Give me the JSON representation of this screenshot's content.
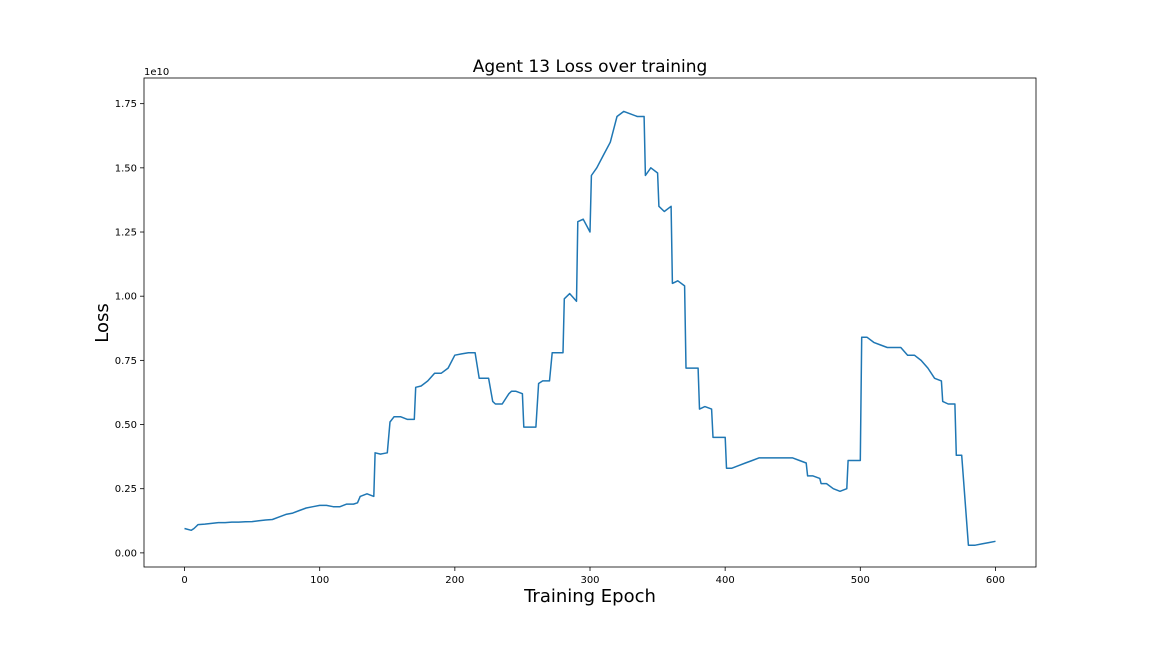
{
  "chart_data": {
    "type": "line",
    "title": "Agent 13 Loss over training",
    "xlabel": "Training Epoch",
    "ylabel": "Loss",
    "y_offset_text": "1e10",
    "xlim": [
      -30,
      630
    ],
    "ylim": [
      -0.055,
      1.85
    ],
    "y_scale_multiplier": 10000000000,
    "x_ticks": [
      0,
      100,
      200,
      300,
      400,
      500,
      600
    ],
    "x_tick_labels": [
      "0",
      "100",
      "200",
      "300",
      "400",
      "500",
      "600"
    ],
    "y_ticks": [
      0.0,
      0.25,
      0.5,
      0.75,
      1.0,
      1.25,
      1.5,
      1.75
    ],
    "y_tick_labels": [
      "0.00",
      "0.25",
      "0.50",
      "0.75",
      "1.00",
      "1.25",
      "1.50",
      "1.75"
    ],
    "grid": false,
    "series": [
      {
        "color": "#1f77b4",
        "x": [
          0,
          5,
          7,
          10,
          15,
          20,
          25,
          30,
          35,
          40,
          45,
          50,
          55,
          60,
          65,
          70,
          75,
          80,
          85,
          90,
          95,
          100,
          105,
          110,
          115,
          120,
          125,
          128,
          130,
          135,
          140,
          141,
          145,
          150,
          152,
          155,
          160,
          165,
          170,
          171,
          175,
          180,
          185,
          190,
          195,
          200,
          205,
          210,
          215,
          218,
          220,
          225,
          228,
          230,
          235,
          240,
          242,
          245,
          250,
          251,
          255,
          260,
          262,
          265,
          270,
          272,
          275,
          280,
          281,
          285,
          290,
          291,
          295,
          300,
          301,
          305,
          310,
          315,
          320,
          325,
          330,
          335,
          340,
          341,
          345,
          350,
          351,
          355,
          360,
          361,
          365,
          370,
          371,
          375,
          380,
          381,
          385,
          390,
          391,
          395,
          400,
          401,
          405,
          410,
          415,
          420,
          425,
          430,
          435,
          440,
          445,
          450,
          455,
          460,
          461,
          465,
          470,
          471,
          475,
          480,
          485,
          490,
          491,
          495,
          500,
          501,
          505,
          510,
          515,
          520,
          525,
          530,
          535,
          540,
          545,
          550,
          555,
          560,
          561,
          565,
          570,
          571,
          575,
          580,
          585,
          590,
          595,
          600
        ],
        "y": [
          0.095,
          0.088,
          0.095,
          0.11,
          0.112,
          0.115,
          0.118,
          0.118,
          0.12,
          0.12,
          0.121,
          0.122,
          0.125,
          0.128,
          0.13,
          0.14,
          0.15,
          0.155,
          0.165,
          0.175,
          0.18,
          0.185,
          0.185,
          0.18,
          0.18,
          0.19,
          0.19,
          0.195,
          0.22,
          0.23,
          0.22,
          0.39,
          0.385,
          0.39,
          0.51,
          0.53,
          0.53,
          0.52,
          0.52,
          0.645,
          0.65,
          0.67,
          0.7,
          0.7,
          0.72,
          0.77,
          0.775,
          0.78,
          0.78,
          0.68,
          0.68,
          0.68,
          0.59,
          0.58,
          0.58,
          0.62,
          0.63,
          0.63,
          0.62,
          0.49,
          0.49,
          0.49,
          0.66,
          0.67,
          0.67,
          0.78,
          0.78,
          0.78,
          0.99,
          1.01,
          0.98,
          1.29,
          1.3,
          1.25,
          1.47,
          1.5,
          1.55,
          1.6,
          1.7,
          1.72,
          1.71,
          1.7,
          1.7,
          1.47,
          1.5,
          1.48,
          1.35,
          1.33,
          1.35,
          1.05,
          1.06,
          1.04,
          0.72,
          0.72,
          0.72,
          0.56,
          0.57,
          0.56,
          0.45,
          0.45,
          0.45,
          0.33,
          0.33,
          0.34,
          0.35,
          0.36,
          0.37,
          0.37,
          0.37,
          0.37,
          0.37,
          0.37,
          0.36,
          0.35,
          0.3,
          0.3,
          0.29,
          0.27,
          0.27,
          0.25,
          0.24,
          0.25,
          0.36,
          0.36,
          0.36,
          0.84,
          0.84,
          0.82,
          0.81,
          0.8,
          0.8,
          0.8,
          0.77,
          0.77,
          0.75,
          0.72,
          0.68,
          0.67,
          0.59,
          0.58,
          0.58,
          0.38,
          0.38,
          0.03,
          0.03,
          0.035,
          0.04,
          0.045
        ]
      }
    ]
  }
}
